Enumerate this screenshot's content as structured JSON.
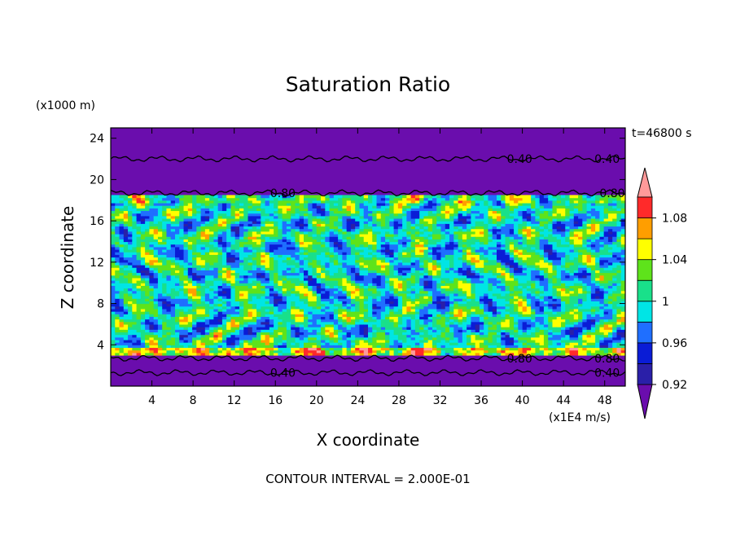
{
  "chart_data": {
    "type": "heatmap",
    "title": "Saturation Ratio",
    "xlabel": "X coordinate",
    "ylabel": "Z coordinate",
    "x_units": "(x1E4 m/s)",
    "y_units": "(x1000 m)",
    "time_label": "t=46800 s",
    "footer": "CONTOUR INTERVAL = 2.000E-01",
    "xlim": [
      0,
      50
    ],
    "ylim": [
      0,
      25
    ],
    "x_ticks": [
      4,
      8,
      12,
      16,
      20,
      24,
      28,
      32,
      36,
      40,
      44,
      48
    ],
    "x_tick_labels": [
      "4",
      "8",
      "12",
      "16",
      "20",
      "24",
      "28",
      "32",
      "36",
      "40",
      "44",
      "48"
    ],
    "y_ticks": [
      4,
      8,
      12,
      16,
      20,
      24
    ],
    "y_tick_labels": [
      "4",
      "8",
      "12",
      "16",
      "20",
      "24"
    ],
    "colorbar": {
      "levels": [
        0.92,
        0.94,
        0.96,
        0.98,
        1.0,
        1.02,
        1.04,
        1.06,
        1.08,
        1.1
      ],
      "labels": [
        "0.92",
        "0.96",
        "1",
        "1.04",
        "1.08"
      ],
      "label_values": [
        0.92,
        0.96,
        1.0,
        1.04,
        1.08
      ],
      "colors": [
        "#6a0dad",
        "#2a1fa8",
        "#0a1cd6",
        "#1f6fff",
        "#00e5e5",
        "#19e08a",
        "#5ee31b",
        "#ffff00",
        "#ff9e00",
        "#ff2a2a",
        "#ff9a9a"
      ]
    },
    "contour_lines": [
      {
        "label": "0.40",
        "z": 22.0
      },
      {
        "label": "0.80",
        "z": 18.7
      },
      {
        "label": "0.80",
        "z": 2.7
      },
      {
        "label": "0.40",
        "z": 1.3
      }
    ],
    "regions": [
      {
        "z_from": 0.0,
        "z_to": 3.0,
        "description": "dry lower layer, S below 0.92"
      },
      {
        "z_from": 3.0,
        "z_to": 18.5,
        "description": "turbulent layer, S between 0.92 and 1.10"
      },
      {
        "z_from": 18.5,
        "z_to": 25.0,
        "description": "dry upper layer, S below 0.92"
      }
    ]
  }
}
